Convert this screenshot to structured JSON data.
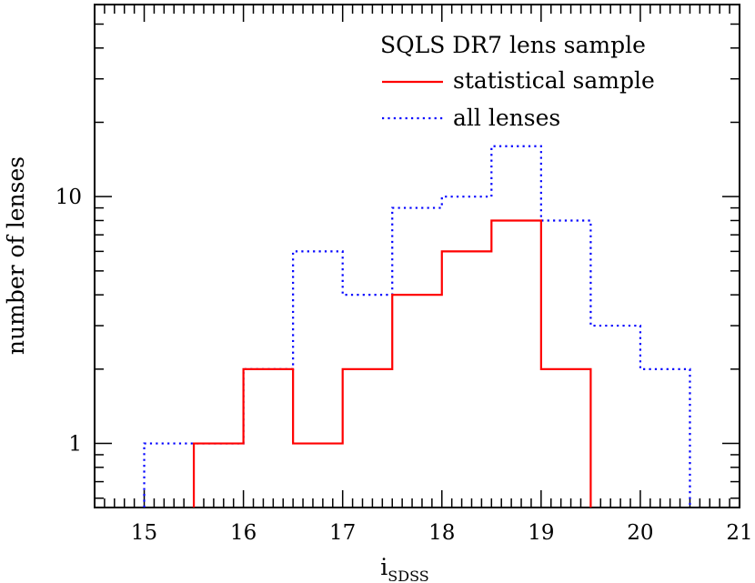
{
  "chart_data": {
    "type": "line",
    "title": "",
    "xlabel": "i",
    "xlabel_subscript": "SDSS",
    "ylabel": "number of lenses",
    "xlim": [
      14.5,
      21
    ],
    "ylim": [
      0.55,
      60
    ],
    "y_scale": "log",
    "grid": false,
    "x_ticks": [
      15,
      16,
      17,
      18,
      19,
      20,
      21
    ],
    "y_ticks": [
      1,
      10
    ],
    "legend": {
      "placement": "top-right",
      "title": "SQLS DR7 lens sample",
      "entries": [
        {
          "label": "statistical sample",
          "color": "#ff0000",
          "style": "solid"
        },
        {
          "label": "all lenses",
          "color": "#0000ff",
          "style": "dotted"
        }
      ]
    },
    "series": [
      {
        "name": "statistical sample",
        "color": "#ff0000",
        "style": "solid",
        "bin_edges": [
          15.5,
          16,
          16.5,
          17,
          17.5,
          18,
          18.5,
          19,
          19.5
        ],
        "counts": [
          1,
          2,
          1,
          2,
          4,
          6,
          8,
          2
        ]
      },
      {
        "name": "all lenses",
        "color": "#0000ff",
        "style": "dotted",
        "bin_edges": [
          15,
          15.5,
          16,
          16.5,
          17,
          17.5,
          18,
          18.5,
          19,
          19.5,
          20,
          20.5
        ],
        "counts": [
          1,
          1,
          2,
          6,
          4,
          9,
          10,
          16,
          8,
          3,
          2
        ]
      }
    ]
  }
}
